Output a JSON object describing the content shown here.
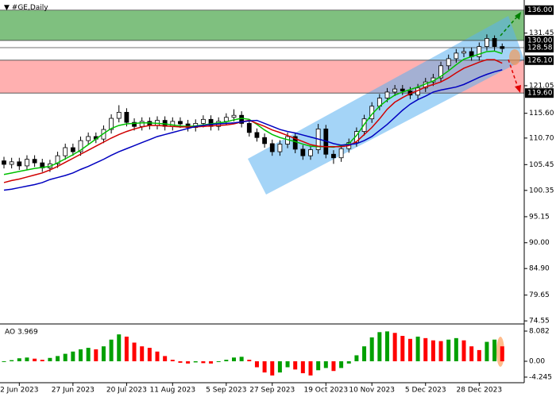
{
  "chart_data": [
    {
      "type": "candlestick",
      "title": "#GE,Daily",
      "ylim": [
        74.1,
        138.0
      ],
      "yticks": [
        131.45,
        121.05,
        {
          "value": 115.6,
          "label": "115.60"
        },
        {
          "value": 110.7,
          "label": "110.70"
        },
        105.45,
        100.35,
        95.15,
        {
          "value": 90,
          "label": "90.00"
        },
        {
          "value": 84.9,
          "label": "84.90"
        },
        79.65,
        74.55
      ],
      "levels": [
        {
          "value": 136,
          "label": "136.00"
        },
        {
          "value": 130,
          "label": "130.00"
        },
        {
          "value": 128.58,
          "label": "128.58"
        },
        {
          "value": 126.1,
          "label": "126.10"
        },
        {
          "value": 119.6,
          "label": "119.60"
        }
      ],
      "zones": [
        {
          "from": 130,
          "to": 136,
          "color": "#7fc07f"
        },
        {
          "from": 119.6,
          "to": 126.1,
          "color": "#ffb0b0"
        }
      ],
      "up_color": "#ffffff",
      "down_color": "#000000",
      "open": [
        106.2,
        105.5,
        106.0,
        105.2,
        106.5,
        105.8,
        104.8,
        105.6,
        107.2,
        108.8,
        108.0,
        110.2,
        111.0,
        110.5,
        112.4,
        114.6,
        115.8,
        113.8,
        113.0,
        114.0,
        113.2,
        114.2,
        113.0,
        114.0,
        113.5,
        112.8,
        113.6,
        114.4,
        113.0,
        114.0,
        114.8,
        115.2,
        113.6,
        111.8,
        110.8,
        109.6,
        108.0,
        109.5,
        111.0,
        108.5,
        107.2,
        108.4,
        112.5,
        107.5,
        106.8,
        108.6,
        109.8,
        112.0,
        114.5,
        117.0,
        118.6,
        119.8,
        120.4,
        120.0,
        119.2,
        120.6,
        121.8,
        122.6,
        125.0,
        126.4,
        127.5,
        127.8,
        126.8,
        128.8,
        130.4,
        128.8
      ],
      "high": [
        107.0,
        106.8,
        106.8,
        107.3,
        107.3,
        106.6,
        106.4,
        108.0,
        109.6,
        109.6,
        111.0,
        111.8,
        111.8,
        113.2,
        115.4,
        117.2,
        116.6,
        114.6,
        114.8,
        114.8,
        115.0,
        115.0,
        114.8,
        114.8,
        114.3,
        114.4,
        115.2,
        115.2,
        114.8,
        115.6,
        116.4,
        116.0,
        114.4,
        112.6,
        111.6,
        110.4,
        110.3,
        111.8,
        111.8,
        109.3,
        109.2,
        113.5,
        113.3,
        108.3,
        109.4,
        110.6,
        112.8,
        115.3,
        117.8,
        119.4,
        120.6,
        121.2,
        121.2,
        120.8,
        121.4,
        122.6,
        123.4,
        125.8,
        127.2,
        128.3,
        128.6,
        128.6,
        129.6,
        131.2,
        131.0,
        129.4
      ],
      "low": [
        104.7,
        104.7,
        104.4,
        104.4,
        105.0,
        104.0,
        104.0,
        104.8,
        106.4,
        107.2,
        107.2,
        109.4,
        109.7,
        109.7,
        111.6,
        113.8,
        113.0,
        112.2,
        112.2,
        112.4,
        112.4,
        112.2,
        112.2,
        112.7,
        112.0,
        112.0,
        112.8,
        112.2,
        112.2,
        113.2,
        114.0,
        112.8,
        111.0,
        110.0,
        108.8,
        107.2,
        107.2,
        108.7,
        107.7,
        106.4,
        106.4,
        107.6,
        106.7,
        105.6,
        106.0,
        107.8,
        109.0,
        111.2,
        113.7,
        116.2,
        117.8,
        119.0,
        119.2,
        118.4,
        118.4,
        119.8,
        121.0,
        121.8,
        124.2,
        125.6,
        126.7,
        126.0,
        126.0,
        128.0,
        128.0,
        127.6
      ],
      "close": [
        105.5,
        106.0,
        105.2,
        106.5,
        105.8,
        104.8,
        105.6,
        107.2,
        108.8,
        108.0,
        110.2,
        111.0,
        110.5,
        112.4,
        114.6,
        115.8,
        113.8,
        113.0,
        114.0,
        113.2,
        114.2,
        113.0,
        114.0,
        113.5,
        112.8,
        113.6,
        114.4,
        113.0,
        114.0,
        114.8,
        115.2,
        113.6,
        111.8,
        110.8,
        109.6,
        108.0,
        109.5,
        111.0,
        108.5,
        107.2,
        108.4,
        112.5,
        107.5,
        106.8,
        108.6,
        109.8,
        112.0,
        114.5,
        117.0,
        118.6,
        119.8,
        120.4,
        120.0,
        119.2,
        120.6,
        121.8,
        122.6,
        125.0,
        126.4,
        127.5,
        127.8,
        126.8,
        128.8,
        130.4,
        128.8,
        128.4
      ],
      "series": [
        {
          "color": "#00c000",
          "values": [
            103.5,
            103.8,
            104.1,
            104.4,
            104.7,
            104.9,
            105.1,
            105.8,
            106.6,
            107.4,
            108.3,
            109.4,
            110.5,
            111.6,
            112.6,
            113.2,
            113.5,
            113.6,
            113.7,
            113.7,
            113.6,
            113.5,
            113.3,
            113.1,
            113.0,
            113.1,
            113.3,
            113.5,
            113.7,
            113.9,
            114.3,
            114.6,
            114.4,
            113.4,
            112.3,
            111.4,
            110.8,
            110.4,
            110.0,
            109.5,
            109.1,
            109.0,
            109.0,
            108.9,
            109.2,
            109.6,
            111.2,
            113.4,
            115.4,
            117.0,
            118.2,
            119.2,
            119.8,
            120.3,
            120.8,
            121.4,
            122.0,
            122.9,
            124.0,
            125.2,
            126.3,
            126.8,
            127.3,
            127.8,
            127.9,
            127.4
          ]
        },
        {
          "color": "#d00000",
          "values": [
            101.9,
            102.3,
            102.6,
            103.0,
            103.4,
            103.8,
            104.4,
            105.1,
            105.9,
            106.7,
            107.5,
            108.3,
            109.1,
            109.9,
            110.7,
            111.4,
            112.0,
            112.5,
            112.9,
            113.2,
            113.2,
            113.1,
            113.0,
            112.9,
            112.9,
            112.9,
            113.0,
            113.1,
            113.2,
            113.3,
            113.5,
            113.9,
            114.2,
            113.6,
            113.0,
            112.3,
            111.8,
            111.2,
            110.6,
            110.0,
            109.4,
            109.1,
            109.0,
            109.0,
            109.0,
            109.2,
            110.0,
            111.4,
            112.8,
            114.5,
            116.4,
            117.8,
            118.7,
            119.5,
            120.1,
            120.8,
            121.3,
            121.8,
            122.6,
            123.6,
            124.5,
            125.1,
            125.7,
            126.2,
            126.2,
            125.5
          ]
        },
        {
          "color": "#0000c0",
          "values": [
            100.4,
            100.6,
            100.9,
            101.2,
            101.5,
            101.9,
            102.5,
            102.9,
            103.3,
            103.8,
            104.5,
            105.1,
            105.8,
            106.5,
            107.3,
            108.0,
            108.6,
            109.2,
            109.8,
            110.4,
            111.0,
            111.4,
            111.8,
            112.2,
            112.6,
            113.0,
            113.2,
            113.4,
            113.5,
            113.6,
            113.7,
            113.9,
            114.1,
            114.2,
            113.6,
            113.0,
            112.4,
            112.0,
            111.7,
            111.3,
            110.9,
            110.5,
            110.1,
            109.6,
            109.3,
            109.4,
            109.6,
            110.2,
            111.0,
            112.2,
            113.4,
            114.8,
            116.2,
            117.4,
            118.3,
            119.0,
            119.8,
            120.2,
            120.5,
            120.8,
            121.3,
            122.0,
            122.7,
            123.3,
            123.8,
            124.2
          ]
        }
      ]
    },
    {
      "type": "bar",
      "title": "AO 3.969",
      "ylim": [
        -5.74,
        9.57
      ],
      "yticks": [
        8.082,
        {
          "value": 0,
          "label": "0.00"
        },
        -4.245
      ],
      "up_color": "#00a000",
      "down_color": "#ff0000",
      "values": [
        -0.2,
        0.3,
        0.8,
        1.0,
        0.7,
        0.4,
        0.9,
        1.4,
        2.0,
        2.6,
        3.2,
        3.6,
        3.2,
        4.0,
        5.8,
        7.2,
        6.6,
        5.0,
        4.0,
        3.6,
        2.6,
        1.4,
        0.4,
        -0.4,
        -0.6,
        -0.3,
        -0.5,
        -0.6,
        -0.2,
        0.4,
        1.0,
        1.2,
        0.4,
        -1.6,
        -3.0,
        -3.8,
        -3.0,
        -1.6,
        -2.2,
        -3.2,
        -3.8,
        -2.4,
        -1.8,
        -2.6,
        -1.8,
        -0.6,
        1.6,
        4.0,
        6.4,
        7.8,
        8.0,
        7.6,
        6.8,
        6.0,
        6.6,
        6.2,
        5.6,
        5.4,
        5.8,
        6.2,
        5.6,
        4.0,
        3.0,
        5.2,
        5.8,
        4.0
      ],
      "xticks": [
        {
          "value": 2,
          "label": "2 Jun 2023"
        },
        {
          "value": 9,
          "label": "27 Jun 2023"
        },
        {
          "value": 16,
          "label": "20 Jul 2023"
        },
        {
          "value": 22,
          "label": "11 Aug 2023"
        },
        {
          "value": 29,
          "label": "5 Sep 2023"
        },
        {
          "value": 35,
          "label": "27 Sep 2023"
        },
        {
          "value": 42,
          "label": "19 Oct 2023"
        },
        {
          "value": 48,
          "label": "10 Nov 2023"
        },
        {
          "value": 55,
          "label": "5 Dec 2023"
        },
        {
          "value": 62,
          "label": "28 Dec 2023"
        }
      ]
    }
  ]
}
